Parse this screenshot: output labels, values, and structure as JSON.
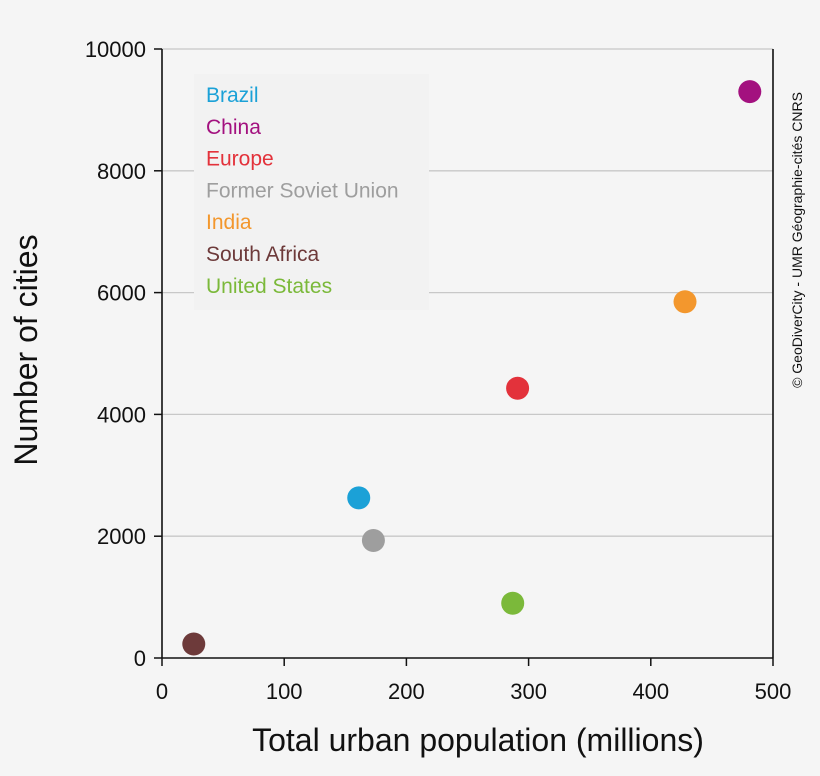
{
  "chart_data": {
    "type": "scatter",
    "title": "",
    "xlabel": "Total urban population (millions)",
    "ylabel": "Number of cities",
    "xlim": [
      0,
      500
    ],
    "ylim": [
      0,
      10000
    ],
    "x_ticks": [
      0,
      100,
      200,
      300,
      400,
      500
    ],
    "y_ticks": [
      0,
      2000,
      4000,
      6000,
      8000,
      10000
    ],
    "grid": "horizontal",
    "legend_position": "top-left",
    "series": [
      {
        "name": "Brazil",
        "color": "#1ba1d7",
        "x": 161,
        "y": 2630
      },
      {
        "name": "China",
        "color": "#a3117f",
        "x": 481,
        "y": 9300
      },
      {
        "name": "Europe",
        "color": "#e3323b",
        "x": 291,
        "y": 4430
      },
      {
        "name": "Former Soviet Union",
        "color": "#9e9e9e",
        "x": 173,
        "y": 1930
      },
      {
        "name": "India",
        "color": "#f3972d",
        "x": 428,
        "y": 5850
      },
      {
        "name": "South Africa",
        "color": "#6d3a3a",
        "x": 26,
        "y": 230
      },
      {
        "name": "United States",
        "color": "#7bb93a",
        "x": 287,
        "y": 900
      }
    ],
    "credit": "© GeoDiverCity - UMR Géographie-cités CNRS"
  }
}
